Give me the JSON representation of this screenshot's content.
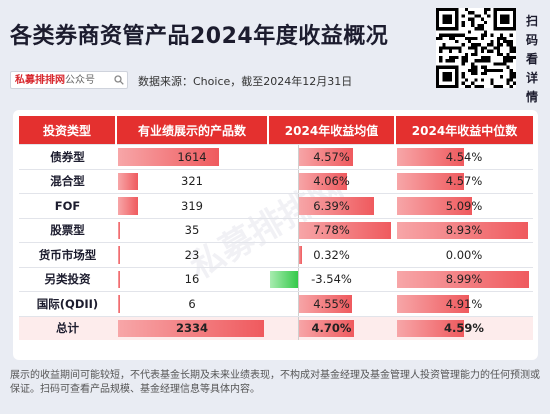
{
  "header": {
    "title": "各类券商资管产品2024年度收益概况",
    "brand_red": "私募排排网",
    "brand_grey": "公众号",
    "source": "数据来源：Choice，截至2024年12月31日",
    "qr_side": [
      "扫",
      "码",
      "看",
      "详",
      "情"
    ]
  },
  "colors": {
    "header_red": "#e4302f",
    "bar_red": "#ef5a5e",
    "bar_green": "#35c94a",
    "total_row": "#fdecec"
  },
  "chart_data": {
    "type": "table",
    "columns": [
      "投资类型",
      "有业绩展示的产品数",
      "2024年收益均值",
      "2024年收益中位数"
    ],
    "rows": [
      {
        "type": "债券型",
        "count": 1614,
        "mean": "4.57%",
        "median": "4.54%"
      },
      {
        "type": "混合型",
        "count": 321,
        "mean": "4.06%",
        "median": "4.57%"
      },
      {
        "type": "FOF",
        "count": 319,
        "mean": "6.39%",
        "median": "5.09%"
      },
      {
        "type": "股票型",
        "count": 35,
        "mean": "7.78%",
        "median": "8.93%"
      },
      {
        "type": "货币市场型",
        "count": 23,
        "mean": "0.32%",
        "median": "0.00%"
      },
      {
        "type": "另类投资",
        "count": 16,
        "mean": "-3.54%",
        "median": "8.99%"
      },
      {
        "type": "国际(QDII)",
        "count": 6,
        "mean": "4.55%",
        "median": "4.91%"
      },
      {
        "type": "总计",
        "count": 2334,
        "mean": "4.70%",
        "median": "4.59%"
      }
    ],
    "mean_values": [
      4.57,
      4.06,
      6.39,
      7.78,
      0.32,
      -3.54,
      4.55,
      4.7
    ],
    "median_values": [
      4.54,
      4.57,
      5.09,
      8.93,
      0.0,
      8.99,
      4.91,
      4.59
    ],
    "count_values": [
      1614,
      321,
      319,
      35,
      23,
      16,
      6,
      2334
    ]
  },
  "footer": {
    "disclaimer": "展示的收益期间可能较短，不代表基金长期及未来业绩表现，不构成对基金经理及基金管理人投资管理能力的任何预测或保证。扫码可查看产品规模、基金经理信息等具体内容。"
  }
}
